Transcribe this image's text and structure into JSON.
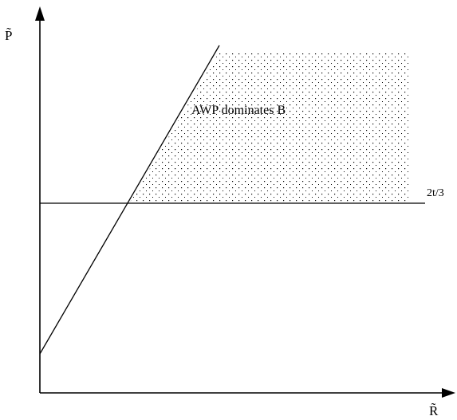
{
  "figure": {
    "y_axis_label": "P̃",
    "x_axis_label": "R̃",
    "region_label": "AWP dominates B",
    "horizontal_line_label": "2t/3"
  },
  "colors": {
    "line": "#000000",
    "dots": "#000000",
    "background": "#ffffff"
  }
}
